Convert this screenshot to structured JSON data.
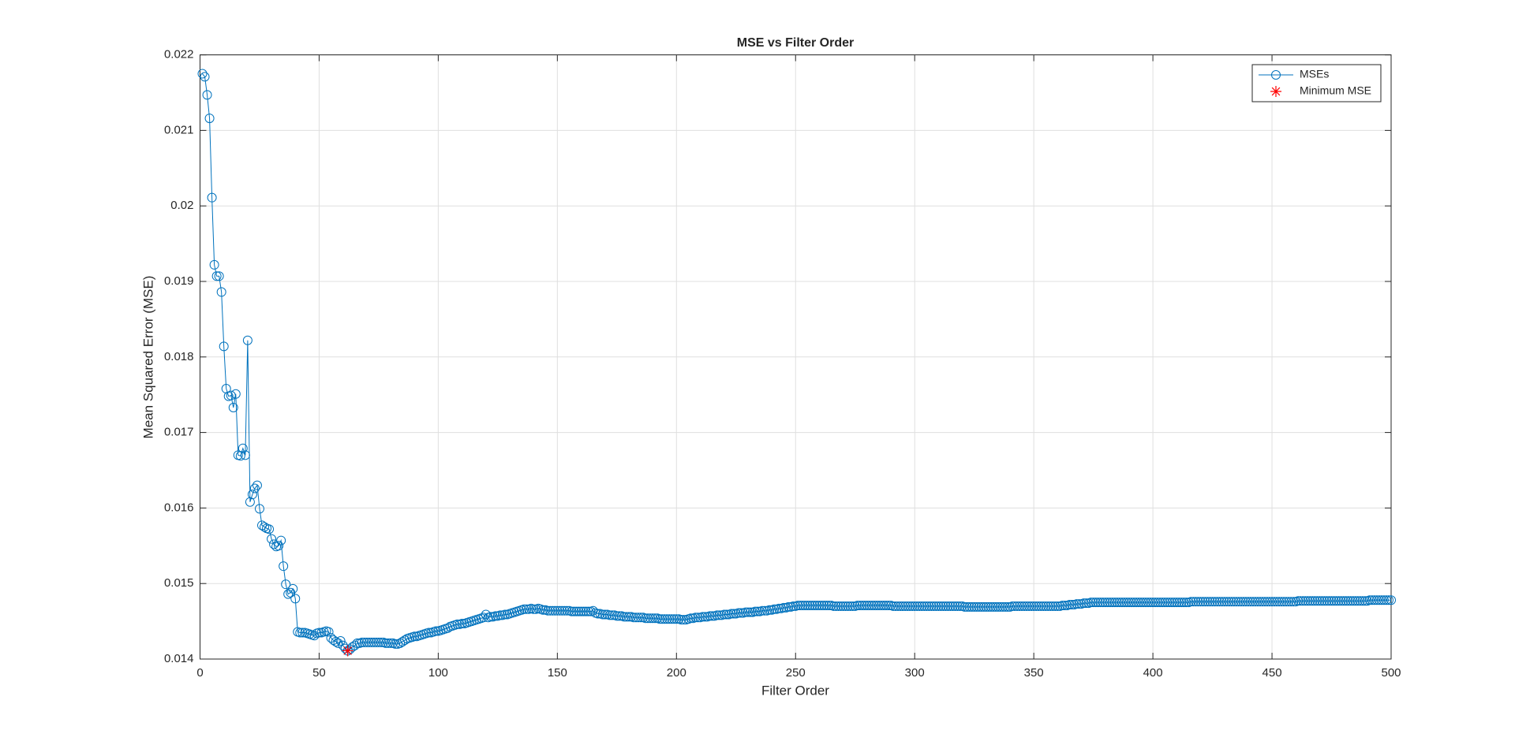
{
  "chart_data": {
    "type": "line",
    "title": "MSE vs Filter Order",
    "x_label": "Filter Order",
    "y_label": "Mean Squared Error (MSE)",
    "xlim": [
      0,
      500
    ],
    "ylim": [
      0.014,
      0.022
    ],
    "xticks": [
      0,
      50,
      100,
      150,
      200,
      250,
      300,
      350,
      400,
      450,
      500
    ],
    "yticks": [
      0.014,
      0.015,
      0.016,
      0.017,
      0.018,
      0.019,
      0.02,
      0.021,
      0.022
    ],
    "grid": true,
    "legend_position": "top-right",
    "series": [
      {
        "name": "MSEs",
        "color": "#0072bd",
        "marker": "circle",
        "x": [
          1,
          2,
          3,
          4,
          5,
          6,
          7,
          8,
          9,
          10,
          11,
          12,
          13,
          14,
          15,
          16,
          17,
          18,
          19,
          20,
          21,
          22,
          23,
          24,
          25,
          26,
          27,
          28,
          29,
          30,
          31,
          32,
          33,
          34,
          35,
          36,
          37,
          38,
          39,
          40,
          41,
          42,
          43,
          44,
          45,
          46,
          47,
          48,
          49,
          50,
          51,
          52,
          53,
          54,
          55,
          56,
          57,
          58,
          59,
          60,
          61,
          62,
          63,
          64,
          65,
          66,
          67,
          68,
          69,
          70,
          71,
          72,
          73,
          74,
          75,
          76,
          77,
          78,
          79,
          80,
          81,
          82,
          83,
          84,
          85,
          86,
          87,
          88,
          89,
          90,
          91,
          92,
          93,
          94,
          95,
          96,
          97,
          98,
          99,
          100,
          101,
          102,
          103,
          104,
          105,
          106,
          107,
          108,
          109,
          110,
          111,
          112,
          113,
          114,
          115,
          116,
          117,
          118,
          119,
          120,
          121,
          122,
          123,
          124,
          125,
          126,
          127,
          128,
          129,
          130,
          131,
          132,
          133,
          134,
          135,
          136,
          137,
          138,
          139,
          140,
          141,
          142,
          143,
          144,
          145,
          146,
          147,
          148,
          149,
          150,
          151,
          152,
          153,
          154,
          155,
          156,
          157,
          158,
          159,
          160,
          161,
          162,
          163,
          164,
          165,
          166,
          167,
          168,
          169,
          170,
          171,
          172,
          173,
          174,
          175,
          176,
          177,
          178,
          179,
          180,
          181,
          182,
          183,
          184,
          185,
          186,
          187,
          188,
          189,
          190,
          191,
          192,
          193,
          194,
          195,
          196,
          197,
          198,
          199,
          200,
          201,
          202,
          203,
          204,
          205,
          206,
          207,
          208,
          209,
          210,
          211,
          212,
          213,
          214,
          215,
          216,
          217,
          218,
          219,
          220,
          221,
          222,
          223,
          224,
          225,
          226,
          227,
          228,
          229,
          230,
          231,
          232,
          233,
          234,
          235,
          236,
          237,
          238,
          239,
          240,
          241,
          242,
          243,
          244,
          245,
          246,
          247,
          248,
          249,
          250,
          251,
          252,
          253,
          254,
          255,
          256,
          257,
          258,
          259,
          260,
          261,
          262,
          263,
          264,
          265,
          266,
          267,
          268,
          269,
          270,
          271,
          272,
          273,
          274,
          275,
          276,
          277,
          278,
          279,
          280,
          281,
          282,
          283,
          284,
          285,
          286,
          287,
          288,
          289,
          290,
          291,
          292,
          293,
          294,
          295,
          296,
          297,
          298,
          299,
          300,
          301,
          302,
          303,
          304,
          305,
          306,
          307,
          308,
          309,
          310,
          311,
          312,
          313,
          314,
          315,
          316,
          317,
          318,
          319,
          320,
          321,
          322,
          323,
          324,
          325,
          326,
          327,
          328,
          329,
          330,
          331,
          332,
          333,
          334,
          335,
          336,
          337,
          338,
          339,
          340,
          341,
          342,
          343,
          344,
          345,
          346,
          347,
          348,
          349,
          350,
          351,
          352,
          353,
          354,
          355,
          356,
          357,
          358,
          359,
          360,
          361,
          362,
          363,
          364,
          365,
          366,
          367,
          368,
          369,
          370,
          371,
          372,
          373,
          374,
          375,
          376,
          377,
          378,
          379,
          380,
          381,
          382,
          383,
          384,
          385,
          386,
          387,
          388,
          389,
          390,
          391,
          392,
          393,
          394,
          395,
          396,
          397,
          398,
          399,
          400,
          401,
          402,
          403,
          404,
          405,
          406,
          407,
          408,
          409,
          410,
          411,
          412,
          413,
          414,
          415,
          416,
          417,
          418,
          419,
          420,
          421,
          422,
          423,
          424,
          425,
          426,
          427,
          428,
          429,
          430,
          431,
          432,
          433,
          434,
          435,
          436,
          437,
          438,
          439,
          440,
          441,
          442,
          443,
          444,
          445,
          446,
          447,
          448,
          449,
          450,
          451,
          452,
          453,
          454,
          455,
          456,
          457,
          458,
          459,
          460,
          461,
          462,
          463,
          464,
          465,
          466,
          467,
          468,
          469,
          470,
          471,
          472,
          473,
          474,
          475,
          476,
          477,
          478,
          479,
          480,
          481,
          482,
          483,
          484,
          485,
          486,
          487,
          488,
          489,
          490,
          491,
          492,
          493,
          494,
          495,
          496,
          497,
          498,
          499,
          500
        ],
        "values": [
          0.02175,
          0.02171,
          0.02147,
          0.02116,
          0.02011,
          0.01922,
          0.01907,
          0.01907,
          0.01886,
          0.01814,
          0.01758,
          0.01748,
          0.01749,
          0.01733,
          0.01751,
          0.0167,
          0.01669,
          0.01679,
          0.0167,
          0.01822,
          0.01608,
          0.01618,
          0.01626,
          0.0163,
          0.01599,
          0.01577,
          0.01575,
          0.01573,
          0.01572,
          0.01559,
          0.01552,
          0.01549,
          0.0155,
          0.01557,
          0.01523,
          0.01499,
          0.01486,
          0.01488,
          0.01493,
          0.0148,
          0.01436,
          0.01435,
          0.01435,
          0.01435,
          0.01434,
          0.01433,
          0.01432,
          0.01431,
          0.01434,
          0.01435,
          0.01435,
          0.01436,
          0.01437,
          0.01436,
          0.01428,
          0.01425,
          0.01423,
          0.01421,
          0.01424,
          0.01418,
          0.01414,
          0.01411,
          0.01413,
          0.01416,
          0.01418,
          0.01421,
          0.01421,
          0.01422,
          0.01422,
          0.01422,
          0.01422,
          0.01422,
          0.01422,
          0.01422,
          0.01422,
          0.01422,
          0.01422,
          0.01421,
          0.01421,
          0.01421,
          0.01421,
          0.0142,
          0.0142,
          0.01421,
          0.01423,
          0.01425,
          0.01427,
          0.01428,
          0.01429,
          0.0143,
          0.0143,
          0.01431,
          0.01432,
          0.01433,
          0.01434,
          0.01435,
          0.01435,
          0.01436,
          0.01437,
          0.01437,
          0.01438,
          0.01439,
          0.0144,
          0.01441,
          0.01443,
          0.01444,
          0.01445,
          0.01446,
          0.01446,
          0.01447,
          0.01447,
          0.01448,
          0.01449,
          0.0145,
          0.01451,
          0.01452,
          0.01453,
          0.01454,
          0.01455,
          0.01459,
          0.01455,
          0.01456,
          0.01456,
          0.01457,
          0.01457,
          0.01458,
          0.01458,
          0.01459,
          0.01459,
          0.0146,
          0.01461,
          0.01462,
          0.01463,
          0.01464,
          0.01465,
          0.01466,
          0.01466,
          0.01466,
          0.01467,
          0.01466,
          0.01466,
          0.01467,
          0.01466,
          0.01465,
          0.01465,
          0.01464,
          0.01464,
          0.01464,
          0.01464,
          0.01464,
          0.01464,
          0.01464,
          0.01464,
          0.01464,
          0.01464,
          0.01463,
          0.01463,
          0.01463,
          0.01463,
          0.01463,
          0.01463,
          0.01463,
          0.01463,
          0.01463,
          0.01464,
          0.01461,
          0.0146,
          0.0146,
          0.01459,
          0.01459,
          0.01459,
          0.01458,
          0.01458,
          0.01458,
          0.01457,
          0.01457,
          0.01457,
          0.01456,
          0.01456,
          0.01456,
          0.01456,
          0.01455,
          0.01455,
          0.01455,
          0.01455,
          0.01455,
          0.01454,
          0.01454,
          0.01454,
          0.01454,
          0.01454,
          0.01454,
          0.01453,
          0.01453,
          0.01453,
          0.01453,
          0.01453,
          0.01453,
          0.01453,
          0.01453,
          0.01453,
          0.01452,
          0.01452,
          0.01452,
          0.01453,
          0.01454,
          0.01454,
          0.01455,
          0.01455,
          0.01455,
          0.01456,
          0.01456,
          0.01456,
          0.01457,
          0.01457,
          0.01457,
          0.01458,
          0.01458,
          0.01458,
          0.01459,
          0.01459,
          0.01459,
          0.0146,
          0.0146,
          0.0146,
          0.01461,
          0.01461,
          0.01461,
          0.01462,
          0.01462,
          0.01462,
          0.01462,
          0.01463,
          0.01463,
          0.01463,
          0.01464,
          0.01464,
          0.01464,
          0.01465,
          0.01465,
          0.01466,
          0.01466,
          0.01467,
          0.01467,
          0.01468,
          0.01468,
          0.01469,
          0.01469,
          0.0147,
          0.0147,
          0.01471,
          0.01471,
          0.01471,
          0.01471,
          0.01471,
          0.01471,
          0.01471,
          0.01471,
          0.01471,
          0.01471,
          0.01471,
          0.01471,
          0.01471,
          0.01471,
          0.01471,
          0.0147,
          0.0147,
          0.0147,
          0.0147,
          0.0147,
          0.0147,
          0.0147,
          0.0147,
          0.0147,
          0.0147,
          0.01471,
          0.01471,
          0.01471,
          0.01471,
          0.01471,
          0.01471,
          0.01471,
          0.01471,
          0.01471,
          0.01471,
          0.01471,
          0.01471,
          0.01471,
          0.01471,
          0.01471,
          0.0147,
          0.0147,
          0.0147,
          0.0147,
          0.0147,
          0.0147,
          0.0147,
          0.0147,
          0.0147,
          0.0147,
          0.0147,
          0.0147,
          0.0147,
          0.0147,
          0.0147,
          0.0147,
          0.0147,
          0.0147,
          0.0147,
          0.0147,
          0.0147,
          0.0147,
          0.0147,
          0.0147,
          0.0147,
          0.0147,
          0.0147,
          0.0147,
          0.0147,
          0.0147,
          0.01469,
          0.01469,
          0.01469,
          0.01469,
          0.01469,
          0.01469,
          0.01469,
          0.01469,
          0.01469,
          0.01469,
          0.01469,
          0.01469,
          0.01469,
          0.01469,
          0.01469,
          0.01469,
          0.01469,
          0.01469,
          0.01469,
          0.01469,
          0.0147,
          0.0147,
          0.0147,
          0.0147,
          0.0147,
          0.0147,
          0.0147,
          0.0147,
          0.0147,
          0.0147,
          0.0147,
          0.0147,
          0.0147,
          0.0147,
          0.0147,
          0.0147,
          0.0147,
          0.0147,
          0.0147,
          0.0147,
          0.0147,
          0.01471,
          0.01471,
          0.01471,
          0.01472,
          0.01472,
          0.01472,
          0.01473,
          0.01473,
          0.01473,
          0.01474,
          0.01474,
          0.01474,
          0.01475,
          0.01475,
          0.01475,
          0.01475,
          0.01475,
          0.01475,
          0.01475,
          0.01475,
          0.01475,
          0.01475,
          0.01475,
          0.01475,
          0.01475,
          0.01475,
          0.01475,
          0.01475,
          0.01475,
          0.01475,
          0.01475,
          0.01475,
          0.01475,
          0.01475,
          0.01475,
          0.01475,
          0.01475,
          0.01475,
          0.01475,
          0.01475,
          0.01475,
          0.01475,
          0.01475,
          0.01475,
          0.01475,
          0.01475,
          0.01475,
          0.01475,
          0.01475,
          0.01475,
          0.01475,
          0.01475,
          0.01475,
          0.01475,
          0.01476,
          0.01476,
          0.01476,
          0.01476,
          0.01476,
          0.01476,
          0.01476,
          0.01476,
          0.01476,
          0.01476,
          0.01476,
          0.01476,
          0.01476,
          0.01476,
          0.01476,
          0.01476,
          0.01476,
          0.01476,
          0.01476,
          0.01476,
          0.01476,
          0.01476,
          0.01476,
          0.01476,
          0.01476,
          0.01476,
          0.01476,
          0.01476,
          0.01476,
          0.01476,
          0.01476,
          0.01476,
          0.01476,
          0.01476,
          0.01476,
          0.01476,
          0.01476,
          0.01476,
          0.01476,
          0.01476,
          0.01476,
          0.01476,
          0.01476,
          0.01476,
          0.01476,
          0.01477,
          0.01477,
          0.01477,
          0.01477,
          0.01477,
          0.01477,
          0.01477,
          0.01477,
          0.01477,
          0.01477,
          0.01477,
          0.01477,
          0.01477,
          0.01477,
          0.01477,
          0.01477,
          0.01477,
          0.01477,
          0.01477,
          0.01477,
          0.01477,
          0.01477,
          0.01477,
          0.01477,
          0.01477,
          0.01477,
          0.01477,
          0.01477,
          0.01477,
          0.01477,
          0.01478,
          0.01478,
          0.01478,
          0.01478,
          0.01478,
          0.01478,
          0.01478,
          0.01478,
          0.01478,
          0.01478
        ]
      },
      {
        "name": "Minimum MSE",
        "color": "#ff0000",
        "marker": "star",
        "x": [
          62
        ],
        "values": [
          0.01411
        ]
      }
    ]
  }
}
